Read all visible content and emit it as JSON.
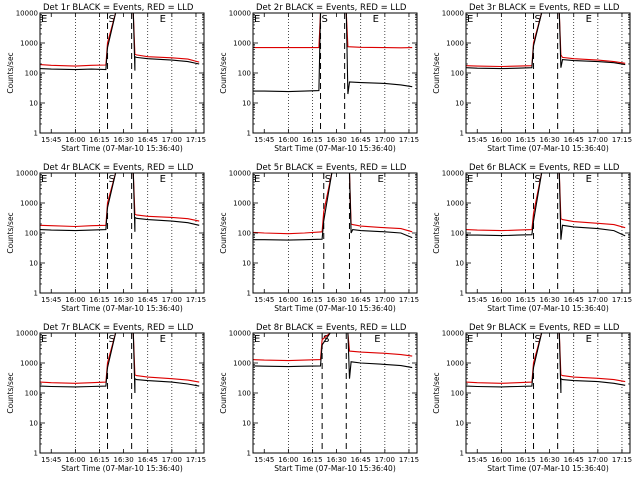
{
  "figure": {
    "panel_titles": [
      "Det 1r BLACK = Events, RED = LLD",
      "Det 2r BLACK = Events, RED = LLD",
      "Det 3r BLACK = Events, RED = LLD",
      "Det 4r BLACK = Events, RED = LLD",
      "Det 5r BLACK = Events, RED = LLD",
      "Det 6r BLACK = Events, RED = LLD",
      "Det 7r BLACK = Events, RED = LLD",
      "Det 8r BLACK = Events, RED = LLD",
      "Det 9r BLACK = Events, RED = LLD"
    ],
    "ylabel": "Counts/sec",
    "xlabel": "Start Time (07-Mar-10 15:36:40)",
    "x_tick_labels": [
      "15:45",
      "16:00",
      "16:15",
      "16:30",
      "16:45",
      "17:00",
      "17:15"
    ],
    "y_tick_labels": [
      "1",
      "10",
      "100",
      "1000",
      "10000"
    ],
    "markers": {
      "start": "S",
      "end": "E"
    },
    "colors": {
      "events": "#000000",
      "lld": "#dd0000",
      "axes": "#000000"
    }
  },
  "chart_data": [
    {
      "type": "line",
      "title": "Det 1r BLACK = Events, RED = LLD",
      "xlabel": "Start Time (07-Mar-10 15:36:40)",
      "ylabel": "Counts/sec",
      "yscale": "log",
      "ylim": [
        1,
        10000
      ],
      "xlim": [
        "15:38",
        "17:20"
      ],
      "grid": "dotted vertical lines at 16:00, 16:15, 16:45, 17:00, 17:15",
      "dashed_lines": [
        "16:20",
        "16:35"
      ],
      "series": [
        {
          "name": "Events",
          "color": "#000000",
          "x": [
            "15:38",
            "15:45",
            "16:00",
            "16:10",
            "16:19",
            "16:20",
            "16:25",
            "16:33",
            "16:36",
            "16:37",
            "16:37",
            "16:38",
            "16:45",
            "17:00",
            "17:10",
            "17:17"
          ],
          "y": [
            140,
            135,
            130,
            135,
            130,
            700,
            12000,
            12000,
            12000,
            120,
            350,
            330,
            300,
            270,
            240,
            200
          ]
        },
        {
          "name": "LLD",
          "color": "#dd0000",
          "x": [
            "15:38",
            "15:45",
            "16:00",
            "16:10",
            "16:19",
            "16:20",
            "16:25",
            "16:33",
            "16:36",
            "16:37",
            "16:38",
            "16:45",
            "17:00",
            "17:10",
            "17:17"
          ],
          "y": [
            190,
            180,
            170,
            180,
            185,
            1000,
            12000,
            12000,
            12000,
            420,
            400,
            350,
            320,
            290,
            230
          ]
        }
      ]
    },
    {
      "type": "line",
      "title": "Det 2r BLACK = Events, RED = LLD",
      "xlabel": "Start Time (07-Mar-10 15:36:40)",
      "ylabel": "Counts/sec",
      "yscale": "log",
      "ylim": [
        1,
        10000
      ],
      "xlim": [
        "15:38",
        "17:20"
      ],
      "grid": "dotted vertical lines at 16:00, 16:15, 16:45, 17:00, 17:15",
      "dashed_lines": [
        "16:20",
        "16:35"
      ],
      "series": [
        {
          "name": "Events",
          "color": "#000000",
          "x": [
            "15:38",
            "15:45",
            "16:00",
            "16:10",
            "16:19",
            "16:20",
            "16:33",
            "16:36",
            "16:37",
            "16:38",
            "16:45",
            "17:00",
            "17:10",
            "17:17"
          ],
          "y": [
            25,
            25,
            24,
            25,
            26,
            12000,
            12000,
            12000,
            20,
            50,
            48,
            45,
            40,
            35
          ]
        },
        {
          "name": "LLD",
          "color": "#dd0000",
          "x": [
            "15:38",
            "15:45",
            "16:00",
            "16:10",
            "16:19",
            "16:20",
            "16:33",
            "16:36",
            "16:37",
            "16:45",
            "17:00",
            "17:10",
            "17:17"
          ],
          "y": [
            700,
            700,
            700,
            700,
            700,
            12000,
            12000,
            12000,
            750,
            720,
            700,
            690,
            700
          ]
        }
      ]
    },
    {
      "type": "line",
      "title": "Det 3r BLACK = Events, RED = LLD",
      "xlabel": "Start Time (07-Mar-10 15:36:40)",
      "ylabel": "Counts/sec",
      "yscale": "log",
      "ylim": [
        1,
        10000
      ],
      "xlim": [
        "15:38",
        "17:20"
      ],
      "grid": "dotted vertical lines at 16:00, 16:15, 16:45, 17:00, 17:15",
      "dashed_lines": [
        "16:20",
        "16:35"
      ],
      "series": [
        {
          "name": "Events",
          "color": "#000000",
          "x": [
            "15:38",
            "15:45",
            "16:00",
            "16:10",
            "16:19",
            "16:20",
            "16:25",
            "16:33",
            "16:36",
            "16:37",
            "16:38",
            "16:45",
            "17:00",
            "17:10",
            "17:17"
          ],
          "y": [
            150,
            145,
            140,
            145,
            150,
            800,
            12000,
            12000,
            12000,
            150,
            280,
            260,
            240,
            220,
            190
          ]
        },
        {
          "name": "LLD",
          "color": "#dd0000",
          "x": [
            "15:38",
            "15:45",
            "16:00",
            "16:10",
            "16:19",
            "16:20",
            "16:25",
            "16:33",
            "16:36",
            "16:37",
            "16:38",
            "16:45",
            "17:00",
            "17:10",
            "17:17"
          ],
          "y": [
            175,
            170,
            165,
            170,
            175,
            1000,
            12000,
            12000,
            12000,
            400,
            330,
            300,
            270,
            240,
            210
          ]
        }
      ]
    },
    {
      "type": "line",
      "title": "Det 4r BLACK = Events, RED = LLD",
      "xlabel": "Start Time (07-Mar-10 15:36:40)",
      "ylabel": "Counts/sec",
      "yscale": "log",
      "ylim": [
        1,
        10000
      ],
      "xlim": [
        "15:38",
        "17:20"
      ],
      "grid": "dotted vertical lines at 16:00, 16:15, 16:45, 17:00, 17:15",
      "dashed_lines": [
        "16:20",
        "16:35"
      ],
      "series": [
        {
          "name": "Events",
          "color": "#000000",
          "x": [
            "15:38",
            "15:45",
            "16:00",
            "16:10",
            "16:19",
            "16:20",
            "16:25",
            "16:33",
            "16:36",
            "16:37",
            "16:37",
            "16:38",
            "16:45",
            "17:00",
            "17:10",
            "17:17"
          ],
          "y": [
            130,
            125,
            120,
            125,
            130,
            700,
            12000,
            12000,
            12000,
            110,
            330,
            310,
            280,
            250,
            220,
            180
          ]
        },
        {
          "name": "LLD",
          "color": "#dd0000",
          "x": [
            "15:38",
            "15:45",
            "16:00",
            "16:10",
            "16:19",
            "16:20",
            "16:25",
            "16:33",
            "16:36",
            "16:37",
            "16:38",
            "16:45",
            "17:00",
            "17:10",
            "17:17"
          ],
          "y": [
            180,
            175,
            165,
            175,
            180,
            1000,
            12000,
            12000,
            12000,
            420,
            400,
            360,
            330,
            300,
            250
          ]
        }
      ]
    },
    {
      "type": "line",
      "title": "Det 5r BLACK = Events, RED = LLD",
      "xlabel": "Start Time (07-Mar-10 15:36:40)",
      "ylabel": "Counts/sec",
      "yscale": "log",
      "ylim": [
        1,
        10000
      ],
      "xlim": [
        "15:38",
        "17:20"
      ],
      "grid": "dotted vertical lines at 16:00, 16:15, 16:45, 17:00, 17:15",
      "dashed_lines": [
        "16:22",
        "16:38"
      ],
      "series": [
        {
          "name": "Events",
          "color": "#000000",
          "x": [
            "15:38",
            "15:45",
            "16:00",
            "16:10",
            "16:21",
            "16:22",
            "16:27",
            "16:35",
            "16:38",
            "16:39",
            "16:40",
            "16:45",
            "17:00",
            "17:10",
            "17:17"
          ],
          "y": [
            60,
            60,
            58,
            60,
            62,
            250,
            12000,
            12000,
            12000,
            100,
            130,
            120,
            110,
            100,
            70
          ]
        },
        {
          "name": "LLD",
          "color": "#dd0000",
          "x": [
            "15:38",
            "15:45",
            "16:00",
            "16:10",
            "16:21",
            "16:22",
            "16:27",
            "16:35",
            "16:38",
            "16:39",
            "16:40",
            "16:45",
            "17:00",
            "17:10",
            "17:17"
          ],
          "y": [
            105,
            100,
            95,
            100,
            110,
            500,
            12000,
            12000,
            12000,
            200,
            190,
            170,
            150,
            140,
            110
          ]
        }
      ]
    },
    {
      "type": "line",
      "title": "Det 6r BLACK = Events, RED = LLD",
      "xlabel": "Start Time (07-Mar-10 15:36:40)",
      "ylabel": "Counts/sec",
      "yscale": "log",
      "ylim": [
        1,
        10000
      ],
      "xlim": [
        "15:38",
        "17:20"
      ],
      "grid": "dotted vertical lines at 16:00, 16:15, 16:45, 17:00, 17:15",
      "dashed_lines": [
        "16:20",
        "16:35"
      ],
      "series": [
        {
          "name": "Events",
          "color": "#000000",
          "x": [
            "15:38",
            "15:45",
            "16:00",
            "16:10",
            "16:19",
            "16:20",
            "16:25",
            "16:33",
            "16:36",
            "16:37",
            "16:38",
            "16:45",
            "17:00",
            "17:10",
            "17:17"
          ],
          "y": [
            85,
            85,
            82,
            85,
            88,
            250,
            12000,
            12000,
            12000,
            60,
            180,
            160,
            140,
            120,
            80
          ]
        },
        {
          "name": "LLD",
          "color": "#dd0000",
          "x": [
            "15:38",
            "15:45",
            "16:00",
            "16:10",
            "16:19",
            "16:20",
            "16:25",
            "16:33",
            "16:36",
            "16:37",
            "16:38",
            "16:45",
            "17:00",
            "17:10",
            "17:17"
          ],
          "y": [
            130,
            125,
            120,
            125,
            130,
            450,
            12000,
            12000,
            12000,
            300,
            280,
            240,
            210,
            190,
            150
          ]
        }
      ]
    },
    {
      "type": "line",
      "title": "Det 7r BLACK = Events, RED = LLD",
      "xlabel": "Start Time (07-Mar-10 15:36:40)",
      "ylabel": "Counts/sec",
      "yscale": "log",
      "ylim": [
        1,
        10000
      ],
      "xlim": [
        "15:38",
        "17:20"
      ],
      "grid": "dotted vertical lines at 16:00, 16:15, 16:45, 17:00, 17:15",
      "dashed_lines": [
        "16:20",
        "16:35"
      ],
      "series": [
        {
          "name": "Events",
          "color": "#000000",
          "x": [
            "15:38",
            "15:45",
            "16:00",
            "16:10",
            "16:19",
            "16:20",
            "16:25",
            "16:33",
            "16:36",
            "16:37",
            "16:37",
            "16:38",
            "16:45",
            "17:00",
            "17:10",
            "17:17"
          ],
          "y": [
            170,
            165,
            160,
            165,
            170,
            700,
            12000,
            12000,
            12000,
            100,
            300,
            280,
            260,
            230,
            200,
            170
          ]
        },
        {
          "name": "LLD",
          "color": "#dd0000",
          "x": [
            "15:38",
            "15:45",
            "16:00",
            "16:10",
            "16:19",
            "16:20",
            "16:25",
            "16:33",
            "16:36",
            "16:37",
            "16:38",
            "16:45",
            "17:00",
            "17:10",
            "17:17"
          ],
          "y": [
            230,
            220,
            210,
            220,
            230,
            1000,
            12000,
            12000,
            12000,
            400,
            380,
            340,
            300,
            270,
            230
          ]
        }
      ]
    },
    {
      "type": "line",
      "title": "Det 8r BLACK = Events, RED = LLD",
      "xlabel": "Start Time (07-Mar-10 15:36:40)",
      "ylabel": "Counts/sec",
      "yscale": "log",
      "ylim": [
        1,
        10000
      ],
      "xlim": [
        "15:38",
        "17:20"
      ],
      "grid": "dotted vertical lines at 16:00, 16:15, 16:45, 17:00, 17:15",
      "dashed_lines": [
        "16:21",
        "16:36"
      ],
      "series": [
        {
          "name": "Events",
          "color": "#000000",
          "x": [
            "15:38",
            "15:45",
            "16:00",
            "16:10",
            "16:20",
            "16:21",
            "16:26",
            "16:34",
            "16:37",
            "16:38",
            "16:39",
            "16:45",
            "17:00",
            "17:10",
            "17:17"
          ],
          "y": [
            800,
            780,
            760,
            780,
            800,
            4000,
            12000,
            12000,
            12000,
            300,
            1100,
            1000,
            900,
            820,
            700
          ]
        },
        {
          "name": "LLD",
          "color": "#dd0000",
          "x": [
            "15:38",
            "15:45",
            "16:00",
            "16:10",
            "16:20",
            "16:21",
            "16:26",
            "16:34",
            "16:37",
            "16:38",
            "16:45",
            "17:00",
            "17:10",
            "17:17"
          ],
          "y": [
            1300,
            1250,
            1200,
            1250,
            1300,
            6000,
            12000,
            12000,
            12000,
            2500,
            2300,
            2100,
            1900,
            1700
          ]
        }
      ]
    },
    {
      "type": "line",
      "title": "Det 9r BLACK = Events, RED = LLD",
      "xlabel": "Start Time (07-Mar-10 15:36:40)",
      "ylabel": "Counts/sec",
      "yscale": "log",
      "ylim": [
        1,
        10000
      ],
      "xlim": [
        "15:38",
        "17:20"
      ],
      "grid": "dotted vertical lines at 16:00, 16:15, 16:45, 17:00, 17:15",
      "dashed_lines": [
        "16:20",
        "16:35"
      ],
      "series": [
        {
          "name": "Events",
          "color": "#000000",
          "x": [
            "15:38",
            "15:45",
            "16:00",
            "16:10",
            "16:19",
            "16:20",
            "16:25",
            "16:33",
            "16:36",
            "16:37",
            "16:37",
            "16:38",
            "16:45",
            "17:00",
            "17:10",
            "17:17"
          ],
          "y": [
            170,
            165,
            160,
            165,
            170,
            700,
            12000,
            12000,
            12000,
            100,
            300,
            280,
            260,
            240,
            210,
            180
          ]
        },
        {
          "name": "LLD",
          "color": "#dd0000",
          "x": [
            "15:38",
            "15:45",
            "16:00",
            "16:10",
            "16:19",
            "16:20",
            "16:25",
            "16:33",
            "16:36",
            "16:37",
            "16:38",
            "16:45",
            "17:00",
            "17:10",
            "17:17"
          ],
          "y": [
            230,
            220,
            210,
            220,
            230,
            1000,
            12000,
            12000,
            12000,
            400,
            380,
            340,
            310,
            280,
            240
          ]
        }
      ]
    }
  ]
}
